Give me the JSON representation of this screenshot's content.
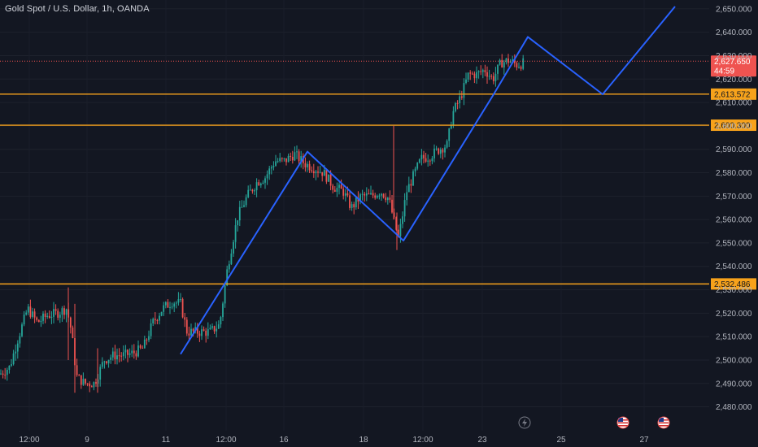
{
  "header": {
    "title": "Gold Spot / U.S. Dollar, 1h, OANDA"
  },
  "colors": {
    "background": "#131722",
    "up": "#26a69a",
    "down": "#ef5350",
    "level": "#f7a21b",
    "projection": "#2962ff",
    "axis_text": "#b2b5be"
  },
  "chart_data": {
    "type": "candlestick",
    "title": "Gold Spot / U.S. Dollar, 1h, OANDA",
    "ylim": [
      2475,
      2655
    ],
    "y_ticks": [
      "2,480.000",
      "2,490.000",
      "2,500.000",
      "2,510.000",
      "2,520.000",
      "2,530.000",
      "2,540.000",
      "2,550.000",
      "2,560.000",
      "2,570.000",
      "2,580.000",
      "2,590.000",
      "2,600.000",
      "2,610.000",
      "2,620.000",
      "2,630.000",
      "2,640.000",
      "2,650.000"
    ],
    "x_ticks": [
      "12:00",
      "9",
      "11",
      "12:00",
      "16",
      "18",
      "12:00",
      "23",
      "25",
      "27"
    ],
    "price_path": [
      [
        0,
        2494
      ],
      [
        12,
        2497
      ],
      [
        22,
        2509
      ],
      [
        34,
        2522
      ],
      [
        46,
        2516
      ],
      [
        58,
        2519
      ],
      [
        70,
        2520
      ],
      [
        82,
        2522
      ],
      [
        88,
        2512
      ],
      [
        94,
        2493
      ],
      [
        104,
        2490
      ],
      [
        116,
        2490
      ],
      [
        128,
        2500
      ],
      [
        140,
        2502
      ],
      [
        152,
        2502
      ],
      [
        164,
        2503
      ],
      [
        176,
        2505
      ],
      [
        188,
        2516
      ],
      [
        200,
        2522
      ],
      [
        212,
        2525
      ],
      [
        222,
        2524
      ],
      [
        230,
        2512
      ],
      [
        244,
        2512
      ],
      [
        258,
        2512
      ],
      [
        270,
        2515
      ],
      [
        280,
        2540
      ],
      [
        292,
        2561
      ],
      [
        304,
        2570
      ],
      [
        316,
        2576
      ],
      [
        326,
        2578
      ],
      [
        338,
        2585
      ],
      [
        350,
        2585
      ],
      [
        362,
        2588
      ],
      [
        374,
        2584
      ],
      [
        386,
        2582
      ],
      [
        398,
        2580
      ],
      [
        410,
        2574
      ],
      [
        422,
        2572
      ],
      [
        432,
        2565
      ],
      [
        444,
        2570
      ],
      [
        456,
        2570
      ],
      [
        468,
        2572
      ],
      [
        478,
        2569
      ],
      [
        484,
        2560
      ],
      [
        490,
        2552
      ],
      [
        500,
        2572
      ],
      [
        510,
        2580
      ],
      [
        518,
        2586
      ],
      [
        528,
        2587
      ],
      [
        540,
        2590
      ],
      [
        550,
        2592
      ],
      [
        556,
        2605
      ],
      [
        566,
        2612
      ],
      [
        576,
        2622
      ],
      [
        586,
        2622
      ],
      [
        596,
        2624
      ],
      [
        606,
        2620
      ],
      [
        616,
        2627
      ],
      [
        626,
        2628
      ],
      [
        636,
        2626
      ],
      [
        645,
        2627
      ]
    ],
    "candle_width_px_note": "",
    "levels": [
      {
        "value": 2613.572,
        "label": "2,613.572"
      },
      {
        "value": 2600.3,
        "label": "2,600.300"
      },
      {
        "value": 2532.486,
        "label": "2,532.486"
      }
    ],
    "current_price": {
      "value": 2627.65,
      "label": "2,627.650",
      "countdown": "44:59"
    },
    "projection_path": [
      [
        222,
        2502.5
      ],
      [
        378,
        2589
      ],
      [
        496,
        2551
      ],
      [
        607,
        2613.5
      ],
      [
        649,
        2638
      ],
      [
        741,
        2613.5
      ],
      [
        830,
        2651
      ]
    ]
  }
}
